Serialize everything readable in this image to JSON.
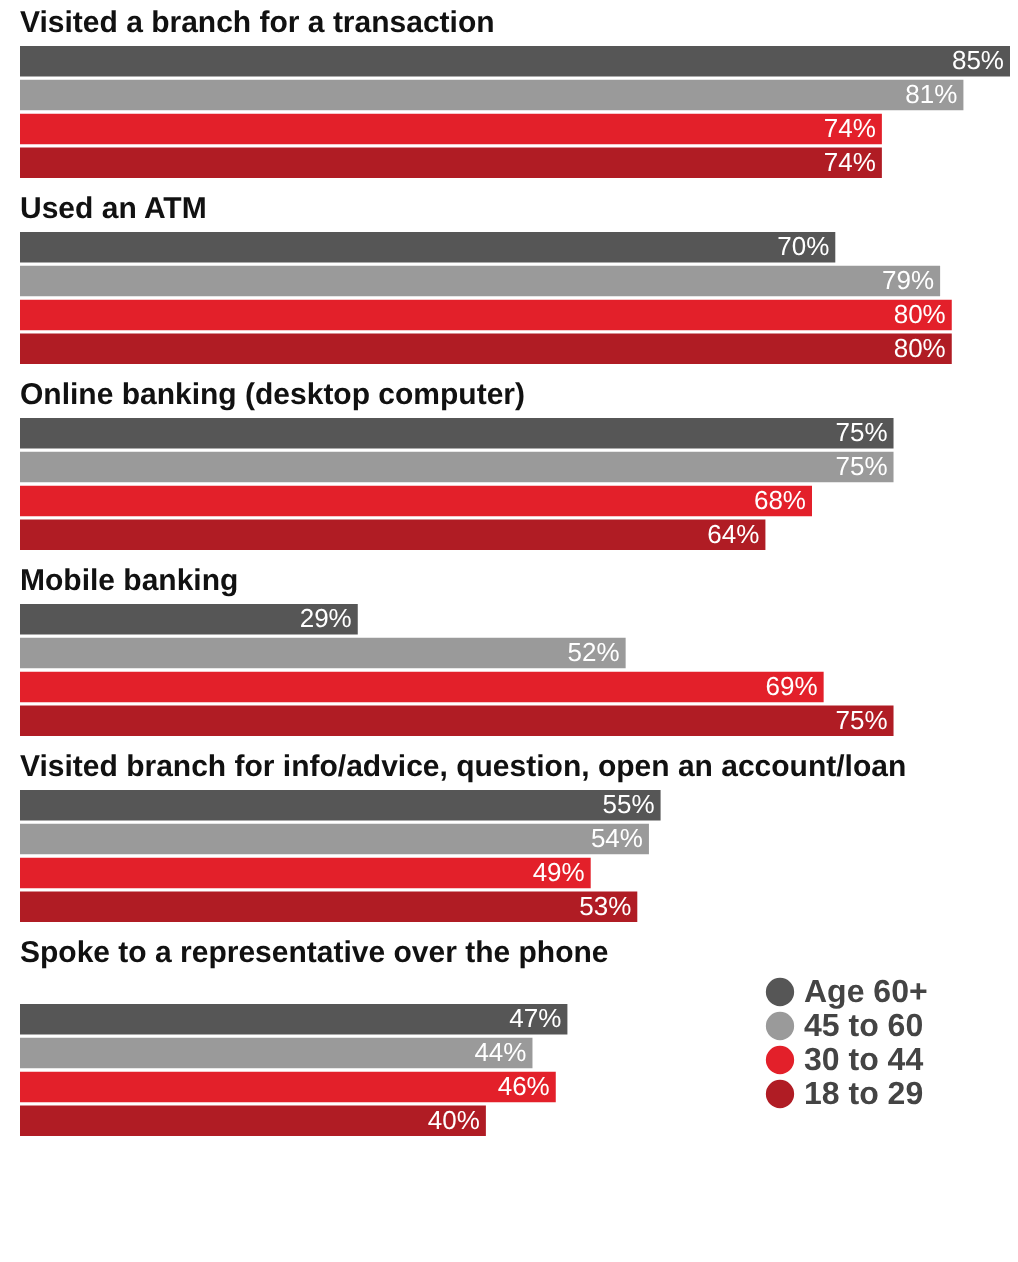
{
  "chart_data": {
    "type": "bar",
    "orientation": "horizontal",
    "categories": [
      "Visited a branch for a transaction",
      "Used an ATM",
      "Online banking (desktop computer)",
      "Mobile banking",
      "Visited branch for info/advice, question, open an account/loan",
      "Spoke to a representative over the phone"
    ],
    "series": [
      {
        "name": "Age 60+",
        "color": "#565656",
        "values": [
          85,
          70,
          75,
          29,
          55,
          47
        ],
        "value_labels": [
          "85%",
          "70%",
          "75%",
          "29%",
          "55%",
          "47%"
        ]
      },
      {
        "name": "45 to 60",
        "color": "#9a9a9a",
        "values": [
          81,
          79,
          75,
          52,
          54,
          44
        ],
        "value_labels": [
          "81%",
          "79%",
          "75%",
          "52%",
          "54%",
          "44%"
        ]
      },
      {
        "name": "30 to 44",
        "color": "#e3202a",
        "values": [
          74,
          80,
          68,
          69,
          49,
          46
        ],
        "value_labels": [
          "74%",
          "80%",
          "68%",
          "69%",
          "49%",
          "46%"
        ]
      },
      {
        "name": "18 to 29",
        "color": "#b01c24",
        "values": [
          74,
          80,
          64,
          75,
          53,
          40
        ],
        "value_labels": [
          "74%",
          "80%",
          "64%",
          "75%",
          "53%",
          "40%"
        ]
      }
    ],
    "xlim": [
      0,
      85
    ],
    "legend": "bottom right"
  }
}
